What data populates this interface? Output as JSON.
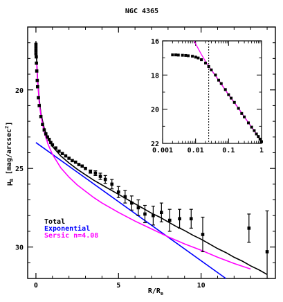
{
  "chart_data": [
    {
      "type": "line",
      "title": "NGC 4365",
      "xlabel": "R/R_e",
      "xlabel_parts": {
        "main": "R/R",
        "sub": "e"
      },
      "ylabel": "μ_B [mag/arcsec^2]",
      "ylabel_parts": {
        "mu": "μ",
        "sub": "B",
        "main": " [mag/arcsec",
        "sup": "2",
        "close": "]"
      },
      "xlim": [
        -0.5,
        14.5
      ],
      "ylim": [
        32,
        16
      ],
      "x_ticks": [
        0,
        5,
        10
      ],
      "y_ticks": [
        20,
        25,
        30
      ],
      "legend_position": "bottom-left",
      "series": [
        {
          "name": "Total",
          "color": "#000000",
          "x": [
            0,
            0.05,
            0.1,
            0.2,
            0.3,
            0.5,
            0.75,
            1,
            1.5,
            2,
            2.5,
            3,
            3.5,
            4,
            4.5,
            5,
            5.5,
            6,
            6.5,
            7,
            7.5,
            8,
            8.5,
            9,
            9.5,
            10,
            10.5,
            11,
            11.5,
            12,
            12.5,
            13,
            13.5,
            14
          ],
          "y": [
            16.9,
            18.3,
            19.3,
            20.6,
            21.5,
            22.45,
            23.15,
            23.6,
            24.2,
            24.65,
            25.05,
            25.4,
            25.75,
            26.05,
            26.35,
            26.65,
            26.95,
            27.25,
            27.55,
            27.85,
            28.1,
            28.4,
            28.7,
            28.95,
            29.25,
            29.5,
            29.8,
            30.1,
            30.35,
            30.65,
            30.9,
            31.2,
            31.45,
            31.75
          ]
        },
        {
          "name": "Exponential",
          "color": "#0000ff",
          "x": [
            0,
            11.5
          ],
          "y": [
            23.35,
            32
          ]
        },
        {
          "name": "Sersic n=4.08",
          "color": "#ff00ff",
          "x": [
            0.05,
            0.1,
            0.2,
            0.3,
            0.5,
            0.75,
            1,
            1.5,
            2,
            2.5,
            3,
            3.5,
            4,
            5,
            6,
            7,
            8,
            9,
            10,
            11,
            12,
            13
          ],
          "y": [
            18.35,
            19.4,
            20.8,
            21.65,
            22.7,
            23.5,
            24.1,
            24.95,
            25.55,
            26.05,
            26.45,
            26.85,
            27.2,
            27.8,
            28.35,
            28.85,
            29.35,
            29.8,
            30.2,
            30.65,
            31.05,
            31.4
          ]
        },
        {
          "name": "data",
          "color": "#000000",
          "style": "points",
          "x": [
            0,
            0,
            0,
            0,
            0.02,
            0.03,
            0.05,
            0.08,
            0.1,
            0.15,
            0.2,
            0.3,
            0.4,
            0.5,
            0.6,
            0.7,
            0.8,
            0.9,
            1,
            1.2,
            1.4,
            1.6,
            1.8,
            2,
            2.2,
            2.4,
            2.6,
            2.8,
            3,
            3.3,
            3.6,
            3.9,
            4.2,
            4.6,
            5,
            5.4,
            5.8,
            6.2,
            6.6,
            7.1,
            7.6,
            8.1,
            8.7,
            9.4,
            10.1,
            12.9,
            14
          ],
          "y": [
            17.1,
            17.3,
            17.5,
            17.7,
            17.9,
            18.3,
            18.8,
            19.4,
            19.8,
            20.5,
            21,
            21.7,
            22.2,
            22.55,
            22.8,
            23,
            23.15,
            23.35,
            23.5,
            23.7,
            23.9,
            24.05,
            24.2,
            24.35,
            24.5,
            24.6,
            24.75,
            24.85,
            25,
            25.2,
            25.3,
            25.5,
            25.7,
            26,
            26.5,
            26.8,
            27.2,
            27.5,
            27.9,
            28,
            27.8,
            28.3,
            28.2,
            28.2,
            29.2,
            28.8,
            30.3
          ],
          "yerr": [
            0,
            0,
            0,
            0,
            0,
            0,
            0,
            0,
            0,
            0,
            0,
            0,
            0,
            0,
            0,
            0,
            0,
            0,
            0,
            0,
            0,
            0,
            0,
            0,
            0,
            0,
            0,
            0,
            0,
            0.1,
            0.15,
            0.2,
            0.25,
            0.3,
            0.35,
            0.4,
            0.45,
            0.5,
            0.55,
            0.6,
            0.6,
            0.7,
            0.6,
            0.6,
            1.1,
            0.9,
            2.6
          ]
        }
      ]
    },
    {
      "type": "line",
      "panel": "inset",
      "xscale": "log",
      "xlim": [
        0.001,
        1
      ],
      "ylim": [
        22,
        16
      ],
      "x_tick_labels": [
        "0.001",
        "0.01",
        "0.1",
        "1"
      ],
      "y_tick_labels": [
        "16",
        "18",
        "20",
        "22"
      ],
      "vertical_dotted_line_x": 0.025,
      "series": [
        {
          "name": "data",
          "color": "#000000",
          "style": "points",
          "x": [
            0.002,
            0.0025,
            0.003,
            0.004,
            0.005,
            0.006,
            0.008,
            0.01,
            0.012,
            0.015,
            0.02,
            0.025,
            0.03,
            0.04,
            0.05,
            0.06,
            0.08,
            0.1,
            0.12,
            0.15,
            0.2,
            0.25,
            0.3,
            0.4,
            0.5,
            0.6,
            0.7,
            0.8,
            0.9,
            1
          ],
          "y": [
            16.82,
            16.82,
            16.83,
            16.84,
            16.85,
            16.87,
            16.9,
            16.95,
            17.0,
            17.1,
            17.3,
            17.5,
            17.7,
            18.0,
            18.3,
            18.5,
            18.85,
            19.15,
            19.35,
            19.6,
            19.95,
            20.25,
            20.45,
            20.8,
            21.05,
            21.25,
            21.45,
            21.6,
            21.75,
            21.9
          ]
        },
        {
          "name": "Total",
          "color": "#000000",
          "x": [
            0.025,
            0.03,
            0.05,
            0.1,
            0.2,
            0.3,
            0.5,
            0.7,
            1
          ],
          "y": [
            17.5,
            17.7,
            18.3,
            19.15,
            19.95,
            20.45,
            21.05,
            21.45,
            21.9
          ]
        },
        {
          "name": "Sersic n=4.08",
          "color": "#ff00ff",
          "x": [
            0.009,
            0.012,
            0.015,
            0.02,
            0.025,
            0.03,
            0.05,
            0.1,
            0.2,
            0.3,
            0.5,
            0.7,
            1
          ],
          "y": [
            16,
            16.45,
            16.8,
            17.2,
            17.5,
            17.7,
            18.3,
            19.15,
            19.95,
            20.45,
            21.05,
            21.45,
            21.9
          ]
        }
      ]
    }
  ]
}
